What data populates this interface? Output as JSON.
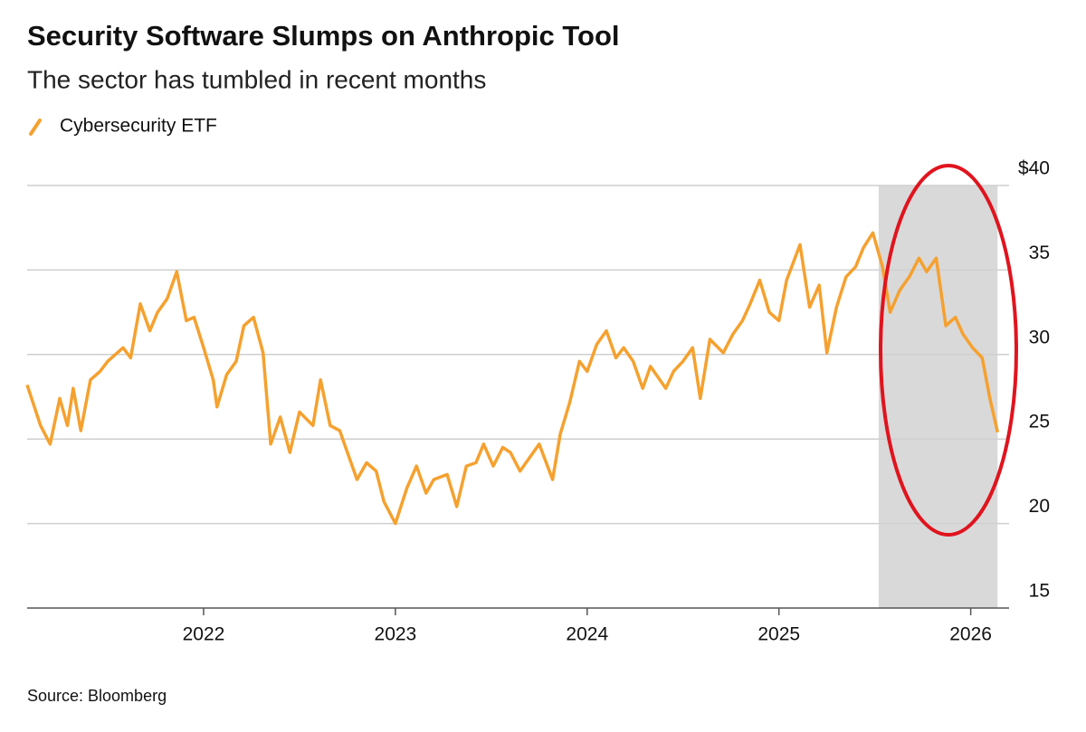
{
  "chart_data": {
    "type": "line",
    "title": "Security Software Slumps on Anthropic Tool",
    "subtitle": "The sector has tumbled in recent months",
    "source": "Source: Bloomberg",
    "x": [
      2021.08,
      2021.15,
      2021.2,
      2021.25,
      2021.29,
      2021.32,
      2021.36,
      2021.41,
      2021.46,
      2021.5,
      2021.58,
      2021.62,
      2021.67,
      2021.72,
      2021.76,
      2021.81,
      2021.86,
      2021.91,
      2021.95,
      2022.0,
      2022.05,
      2022.07,
      2022.12,
      2022.17,
      2022.21,
      2022.26,
      2022.31,
      2022.35,
      2022.4,
      2022.45,
      2022.5,
      2022.57,
      2022.61,
      2022.66,
      2022.71,
      2022.75,
      2022.8,
      2022.85,
      2022.9,
      2022.94,
      2023.0,
      2023.06,
      2023.11,
      2023.16,
      2023.2,
      2023.27,
      2023.32,
      2023.37,
      2023.42,
      2023.46,
      2023.51,
      2023.56,
      2023.6,
      2023.65,
      2023.7,
      2023.75,
      2023.82,
      2023.86,
      2023.91,
      2023.96,
      2024.0,
      2024.05,
      2024.1,
      2024.15,
      2024.19,
      2024.24,
      2024.29,
      2024.33,
      2024.41,
      2024.45,
      2024.5,
      2024.55,
      2024.59,
      2024.64,
      2024.71,
      2024.76,
      2024.81,
      2024.85,
      2024.9,
      2024.95,
      2025.0,
      2025.04,
      2025.11,
      2025.16,
      2025.21,
      2025.25,
      2025.3,
      2025.35,
      2025.4,
      2025.44,
      2025.49,
      2025.54,
      2025.58,
      2025.63,
      2025.68,
      2025.73,
      2025.77,
      2025.82,
      2025.87,
      2025.92,
      2025.96,
      2026.01,
      2026.06,
      2026.1,
      2026.14
    ],
    "series": [
      {
        "name": "Cybersecurity ETF",
        "color": "#f5a12f",
        "values": [
          28.2,
          25.8,
          24.7,
          27.4,
          25.8,
          28.0,
          25.5,
          28.5,
          29.0,
          29.6,
          30.4,
          29.8,
          33.0,
          31.4,
          32.5,
          33.3,
          34.9,
          32.0,
          32.2,
          30.4,
          28.5,
          26.9,
          28.8,
          29.6,
          31.7,
          32.2,
          30.1,
          24.7,
          26.3,
          24.2,
          26.6,
          25.8,
          28.5,
          25.8,
          25.5,
          24.2,
          22.6,
          23.6,
          23.1,
          21.3,
          20.0,
          22.1,
          23.4,
          21.8,
          22.6,
          22.9,
          21.0,
          23.4,
          23.6,
          24.7,
          23.4,
          24.5,
          24.2,
          23.1,
          23.9,
          24.7,
          22.6,
          25.3,
          27.2,
          29.6,
          29.0,
          30.6,
          31.4,
          29.8,
          30.4,
          29.6,
          28.0,
          29.3,
          28.0,
          29.0,
          29.6,
          30.4,
          27.4,
          30.9,
          30.1,
          31.2,
          32.0,
          33.0,
          34.4,
          32.5,
          32.0,
          34.4,
          36.5,
          32.8,
          34.1,
          30.1,
          32.8,
          34.6,
          35.2,
          36.3,
          37.2,
          35.2,
          32.5,
          33.8,
          34.6,
          35.7,
          34.9,
          35.7,
          31.7,
          32.2,
          31.2,
          30.4,
          29.8,
          27.4,
          25.4
        ]
      }
    ],
    "xlim": [
      2021.08,
      2026.2
    ],
    "xticks": [
      2022,
      2023,
      2024,
      2025,
      2026
    ],
    "ylim": [
      15,
      40
    ],
    "yticks": [
      15,
      20,
      25,
      30,
      35,
      {
        "value": 40,
        "label": "$40"
      }
    ],
    "grid": true,
    "shade_x": [
      2025.52,
      2026.14
    ],
    "shade_color": "#d9d9d9"
  }
}
